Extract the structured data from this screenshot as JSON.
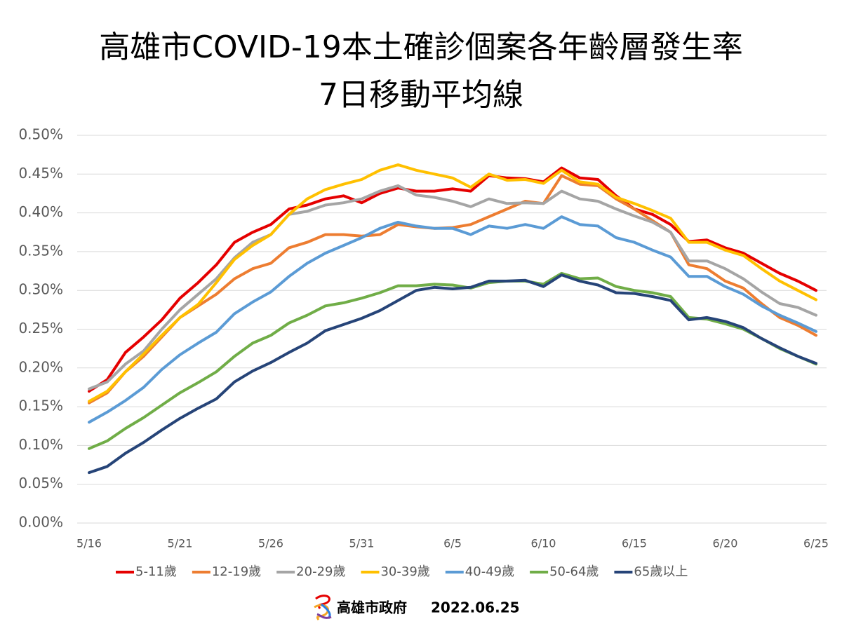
{
  "chart_data": {
    "type": "line",
    "title": "高雄市COVID-19本土確診個案各年齡層發生率",
    "subtitle": "7日移動平均線",
    "categories": [
      "5/16",
      null,
      null,
      null,
      null,
      "5/21",
      null,
      null,
      null,
      null,
      "5/26",
      null,
      null,
      null,
      null,
      "5/31",
      null,
      null,
      null,
      null,
      "6/5",
      null,
      null,
      null,
      null,
      "6/10",
      null,
      null,
      null,
      null,
      "6/15",
      null,
      null,
      null,
      null,
      "6/20",
      null,
      null,
      null,
      null,
      "6/25"
    ],
    "series": [
      {
        "name": "5-11歲",
        "color": "#e50000",
        "values": [
          0.17,
          0.185,
          0.22,
          0.24,
          0.262,
          0.29,
          0.31,
          0.333,
          0.362,
          0.375,
          0.385,
          0.405,
          0.41,
          0.418,
          0.422,
          0.413,
          0.425,
          0.432,
          0.428,
          0.428,
          0.431,
          0.428,
          0.448,
          0.445,
          0.444,
          0.44,
          0.458,
          0.445,
          0.443,
          0.422,
          0.405,
          0.398,
          0.385,
          0.363,
          0.365,
          0.355,
          0.348,
          0.335,
          0.322,
          0.312,
          0.3
        ]
      },
      {
        "name": "12-19歲",
        "color": "#ed7d31",
        "values": [
          0.155,
          0.168,
          0.195,
          0.215,
          0.24,
          0.265,
          0.28,
          0.295,
          0.315,
          0.328,
          0.335,
          0.355,
          0.362,
          0.372,
          0.372,
          0.37,
          0.372,
          0.385,
          0.382,
          0.38,
          0.381,
          0.385,
          0.395,
          0.405,
          0.415,
          0.412,
          0.448,
          0.437,
          0.435,
          0.418,
          0.405,
          0.39,
          0.375,
          0.333,
          0.328,
          0.312,
          0.303,
          0.283,
          0.265,
          0.255,
          0.242
        ]
      },
      {
        "name": "20-29歲",
        "color": "#a5a5a5",
        "values": [
          0.173,
          0.182,
          0.205,
          0.222,
          0.25,
          0.275,
          0.295,
          0.315,
          0.342,
          0.362,
          0.372,
          0.398,
          0.402,
          0.41,
          0.413,
          0.418,
          0.428,
          0.435,
          0.423,
          0.42,
          0.415,
          0.408,
          0.418,
          0.412,
          0.413,
          0.412,
          0.428,
          0.418,
          0.415,
          0.405,
          0.396,
          0.388,
          0.375,
          0.338,
          0.338,
          0.328,
          0.315,
          0.298,
          0.283,
          0.278,
          0.268
        ]
      },
      {
        "name": "30-39歲",
        "color": "#ffc000",
        "values": [
          0.157,
          0.17,
          0.195,
          0.218,
          0.242,
          0.265,
          0.282,
          0.31,
          0.34,
          0.358,
          0.372,
          0.398,
          0.418,
          0.43,
          0.437,
          0.443,
          0.455,
          0.462,
          0.455,
          0.45,
          0.445,
          0.433,
          0.45,
          0.442,
          0.443,
          0.438,
          0.455,
          0.44,
          0.437,
          0.42,
          0.412,
          0.403,
          0.393,
          0.362,
          0.362,
          0.352,
          0.345,
          0.328,
          0.312,
          0.3,
          0.288
        ]
      },
      {
        "name": "40-49歲",
        "color": "#5b9bd5",
        "values": [
          0.13,
          0.143,
          0.158,
          0.175,
          0.198,
          0.217,
          0.232,
          0.246,
          0.27,
          0.285,
          0.298,
          0.318,
          0.335,
          0.348,
          0.358,
          0.368,
          0.38,
          0.388,
          0.383,
          0.38,
          0.38,
          0.372,
          0.383,
          0.38,
          0.385,
          0.38,
          0.395,
          0.385,
          0.383,
          0.368,
          0.362,
          0.352,
          0.343,
          0.318,
          0.318,
          0.305,
          0.295,
          0.28,
          0.268,
          0.258,
          0.247
        ]
      },
      {
        "name": "50-64歲",
        "color": "#70ad47",
        "values": [
          0.096,
          0.106,
          0.122,
          0.136,
          0.152,
          0.168,
          0.181,
          0.195,
          0.215,
          0.232,
          0.242,
          0.258,
          0.268,
          0.28,
          0.284,
          0.29,
          0.297,
          0.306,
          0.306,
          0.308,
          0.307,
          0.303,
          0.31,
          0.312,
          0.312,
          0.308,
          0.322,
          0.315,
          0.316,
          0.305,
          0.3,
          0.297,
          0.292,
          0.265,
          0.263,
          0.257,
          0.25,
          0.238,
          0.225,
          0.215,
          0.205
        ]
      },
      {
        "name": "65歲以上",
        "color": "#264478",
        "values": [
          0.065,
          0.073,
          0.09,
          0.104,
          0.12,
          0.135,
          0.148,
          0.16,
          0.182,
          0.196,
          0.207,
          0.22,
          0.232,
          0.248,
          0.256,
          0.264,
          0.274,
          0.287,
          0.3,
          0.304,
          0.302,
          0.304,
          0.312,
          0.312,
          0.313,
          0.305,
          0.32,
          0.312,
          0.307,
          0.297,
          0.296,
          0.292,
          0.287,
          0.262,
          0.265,
          0.26,
          0.252,
          0.238,
          0.226,
          0.215,
          0.206
        ]
      }
    ],
    "ylim": [
      0,
      0.5
    ],
    "yticks": [
      {
        "value": 0,
        "label": "0.00%"
      },
      {
        "value": 0.05,
        "label": "0.05%"
      },
      {
        "value": 0.1,
        "label": "0.10%"
      },
      {
        "value": 0.15,
        "label": "0.15%"
      },
      {
        "value": 0.2,
        "label": "0.20%"
      },
      {
        "value": 0.25,
        "label": "0.25%"
      },
      {
        "value": 0.3,
        "label": "0.30%"
      },
      {
        "value": 0.35,
        "label": "0.35%"
      },
      {
        "value": 0.4,
        "label": "0.40%"
      },
      {
        "value": 0.45,
        "label": "0.45%"
      },
      {
        "value": 0.5,
        "label": "0.50%"
      }
    ],
    "grid": true,
    "legend": "bottom"
  },
  "footer": {
    "organization": "高雄市政府",
    "date": "2022.06.25"
  }
}
